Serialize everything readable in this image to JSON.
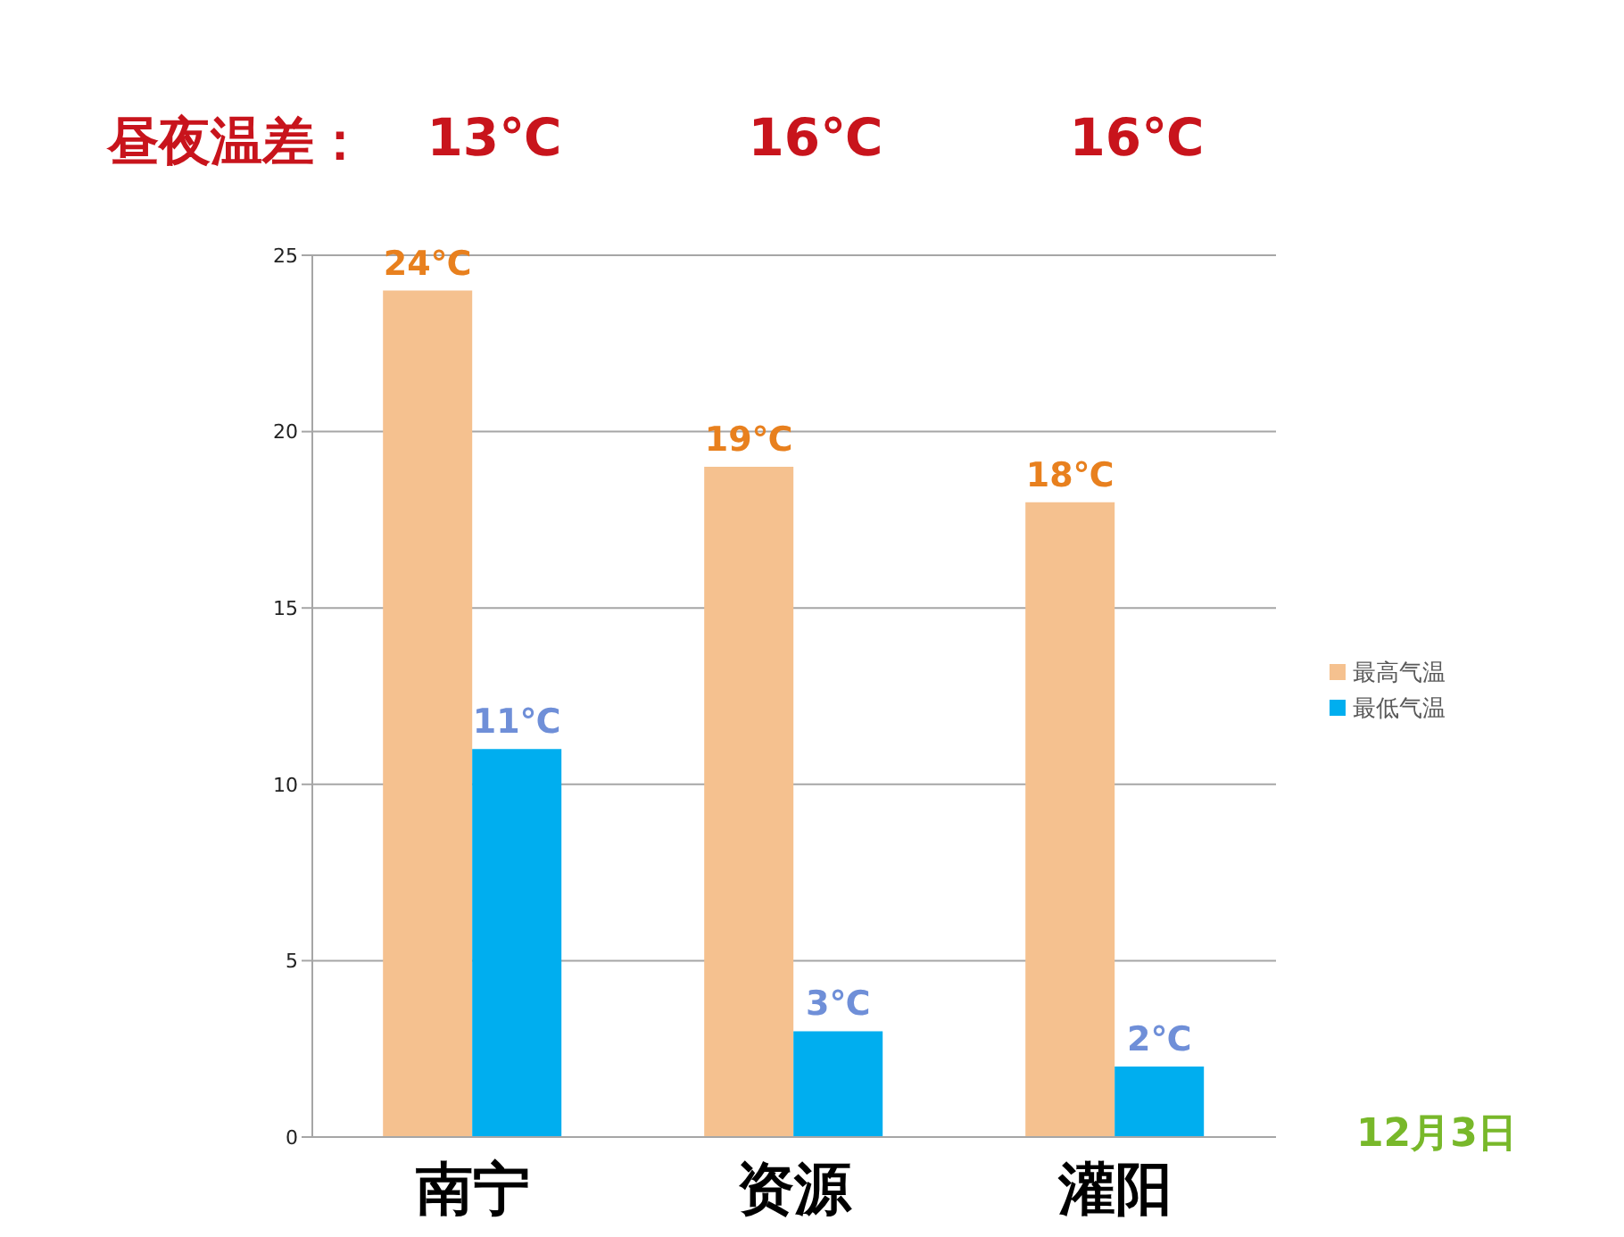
{
  "chart_data": {
    "type": "bar",
    "categories": [
      "南宁",
      "资源",
      "灌阳"
    ],
    "series": [
      {
        "name": "最高气温",
        "color": "#f5c18f",
        "values": [
          24,
          19,
          18
        ],
        "value_labels": [
          "24℃",
          "19℃",
          "18℃"
        ]
      },
      {
        "name": "最低气温",
        "color": "#00aeef",
        "values": [
          11,
          3,
          2
        ],
        "value_labels": [
          "11℃",
          "3℃",
          "2℃"
        ]
      }
    ],
    "ylim": [
      0,
      25
    ],
    "yticks": [
      0,
      5,
      10,
      15,
      20,
      25
    ],
    "grid": "y",
    "legend": "right",
    "annotations": [
      "昼夜温差：",
      "13℃",
      "16℃",
      "16℃",
      "12月3日"
    ]
  }
}
